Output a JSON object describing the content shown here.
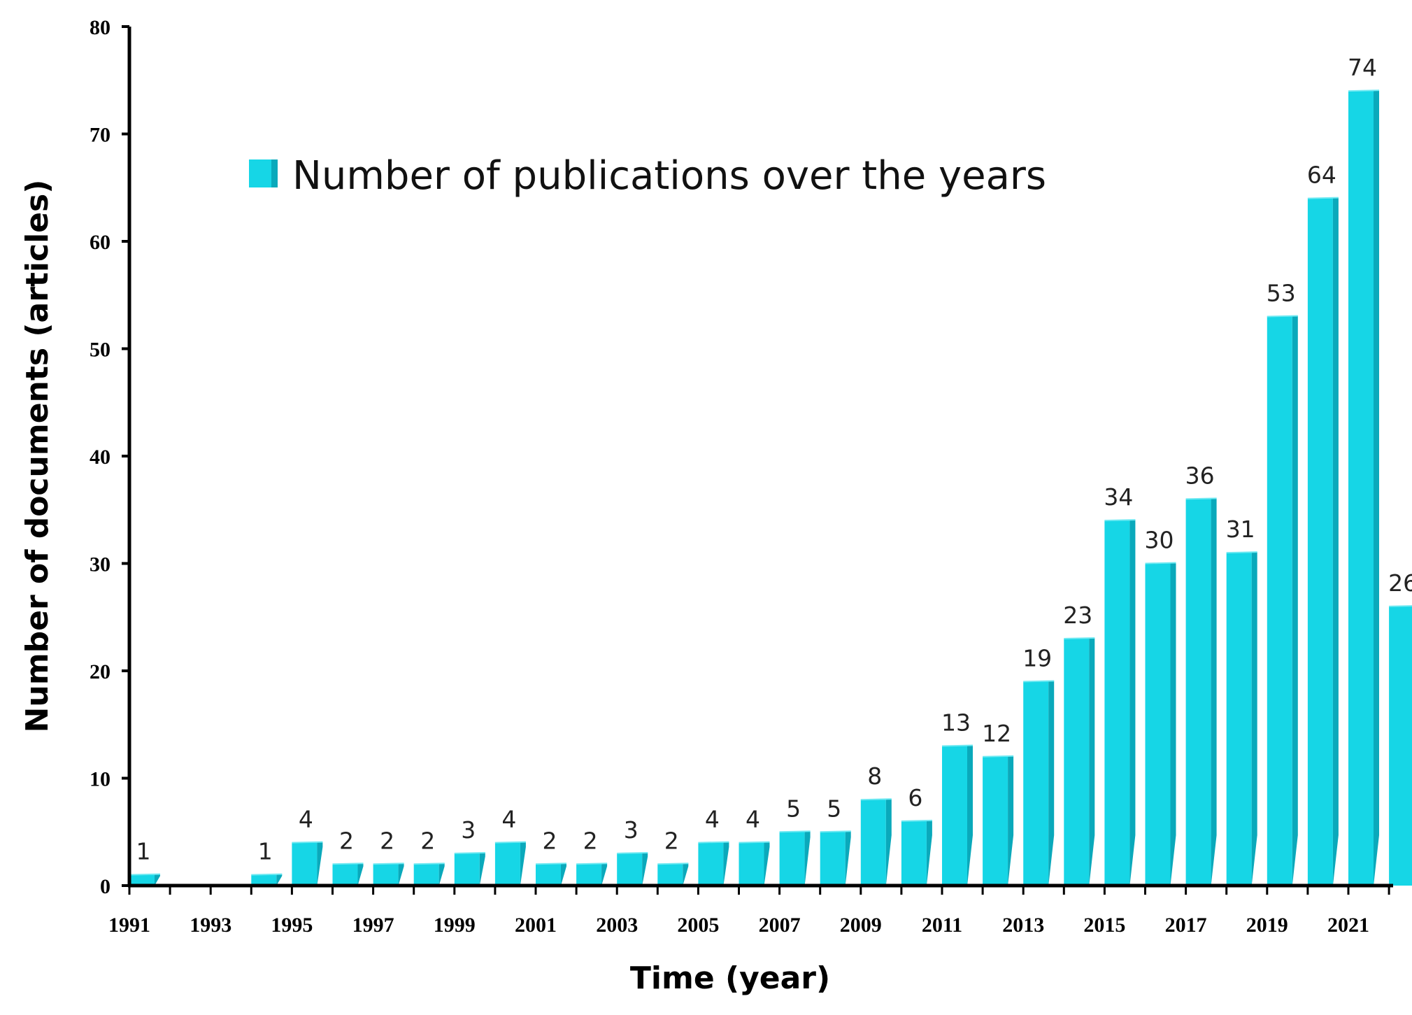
{
  "chart_data": {
    "type": "bar",
    "title": "",
    "legend": "Number of publications over the years",
    "legend_position": "top-left",
    "xlabel": "Time (year)",
    "ylabel": "Number of documents (articles)",
    "ylim": [
      0,
      80
    ],
    "yticks": [
      0,
      10,
      20,
      30,
      40,
      50,
      60,
      70,
      80
    ],
    "x_tick_labels": [
      "1991",
      "1993",
      "1995",
      "1997",
      "1999",
      "2001",
      "2003",
      "2005",
      "2007",
      "2009",
      "2011",
      "2013",
      "2015",
      "2017",
      "2019",
      "2021"
    ],
    "categories": [
      "1991",
      "1992",
      "1993",
      "1994",
      "1995",
      "1996",
      "1997",
      "1998",
      "1999",
      "2000",
      "2001",
      "2002",
      "2003",
      "2004",
      "2005",
      "2006",
      "2007",
      "2008",
      "2009",
      "2010",
      "2011",
      "2012",
      "2013",
      "2014",
      "2015",
      "2016",
      "2017",
      "2018",
      "2019",
      "2020",
      "2021",
      "2022"
    ],
    "values": [
      1,
      0,
      0,
      1,
      4,
      2,
      2,
      2,
      3,
      4,
      2,
      2,
      3,
      2,
      4,
      4,
      5,
      5,
      8,
      6,
      13,
      12,
      19,
      23,
      34,
      30,
      36,
      31,
      53,
      64,
      74,
      26
    ],
    "value_labels": [
      "1",
      "",
      "",
      "1",
      "4",
      "2",
      "2",
      "2",
      "3",
      "4",
      "2",
      "2",
      "3",
      "2",
      "4",
      "4",
      "5",
      "5",
      "8",
      "6",
      "13",
      "12",
      "19",
      "23",
      "34",
      "30",
      "36",
      "31",
      "53",
      "64",
      "74",
      "26"
    ],
    "bar_color": "#16d6e6",
    "bar_side_color": "#0aa9bb",
    "bar_top_color": "#6ee9f2"
  }
}
